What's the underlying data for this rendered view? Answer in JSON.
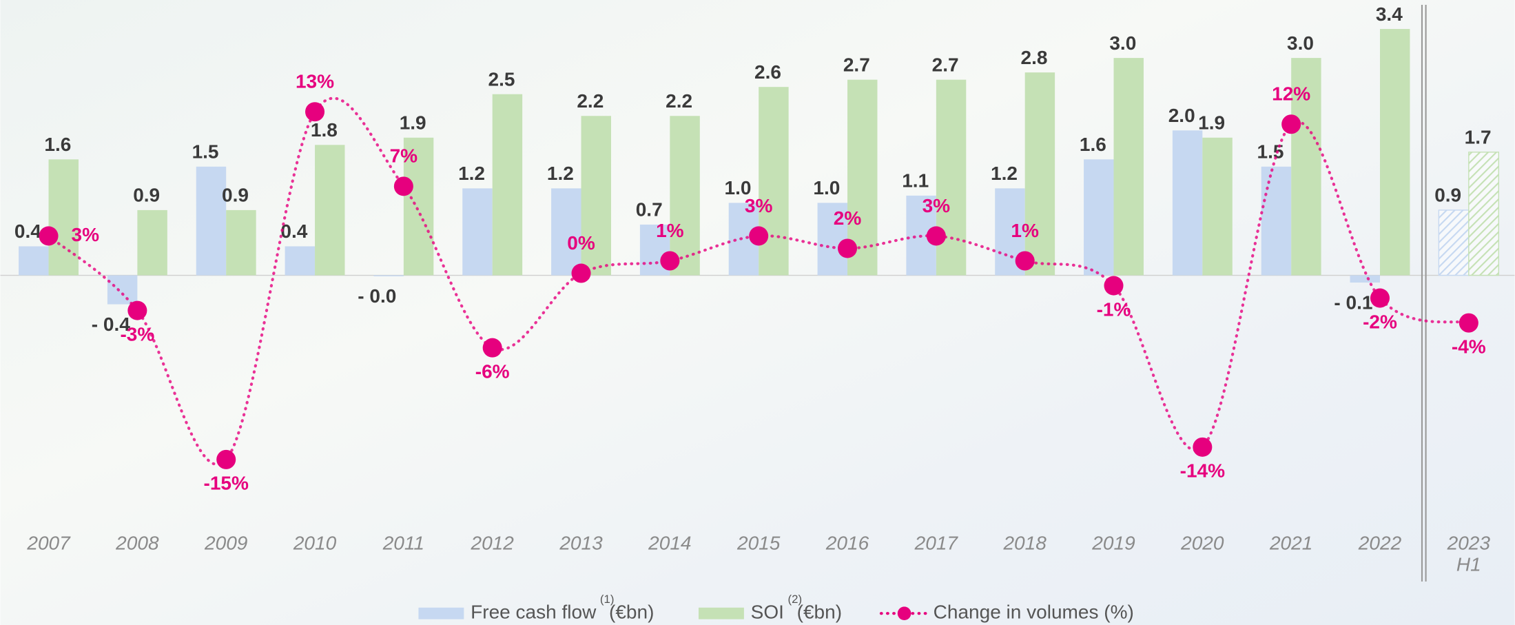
{
  "chart_data": {
    "type": "bar_line",
    "categories": [
      "2007",
      "2008",
      "2009",
      "2010",
      "2011",
      "2012",
      "2013",
      "2014",
      "2015",
      "2016",
      "2017",
      "2018",
      "2019",
      "2020",
      "2021",
      "2022",
      "2023\nH1"
    ],
    "hatched_categories": [
      "2023\nH1"
    ],
    "ylim": [
      -3.4,
      3.8
    ],
    "y2lim": [
      -20,
      22
    ],
    "series": [
      {
        "name": "Free cash flow",
        "footnote": "(1)",
        "unit": "(€bn)",
        "color": "#c6d8f1",
        "type": "bar",
        "values": [
          0.4,
          -0.4,
          1.5,
          0.4,
          -0.01,
          1.2,
          1.2,
          0.7,
          1.0,
          1.0,
          1.1,
          1.2,
          1.6,
          2.0,
          1.5,
          -0.1,
          0.9
        ],
        "value_labels": [
          "0.4",
          "- 0.4",
          "1.5",
          "0.4",
          "- 0.0",
          "1.2",
          "1.2",
          "0.7",
          "1.0",
          "1.0",
          "1.1",
          "1.2",
          "1.6",
          "2.0",
          "1.5",
          "- 0.1",
          "0.9"
        ]
      },
      {
        "name": "SOI",
        "footnote": "(2)",
        "unit": "(€bn)",
        "color": "#c5e1b5",
        "type": "bar",
        "values": [
          1.6,
          0.9,
          0.9,
          1.8,
          1.9,
          2.5,
          2.2,
          2.2,
          2.6,
          2.7,
          2.7,
          2.8,
          3.0,
          1.9,
          3.0,
          3.4,
          1.7
        ],
        "value_labels": [
          "1.6",
          "0.9",
          "0.9",
          "1.8",
          "1.9",
          "2.5",
          "2.2",
          "2.2",
          "2.6",
          "2.7",
          "2.7",
          "2.8",
          "3.0",
          "1.9",
          "3.0",
          "3.4",
          "1.7"
        ]
      },
      {
        "name": "Change in volumes (%)",
        "color": "#e6007e",
        "type": "line",
        "axis": "y2",
        "values": [
          3,
          -3,
          -15,
          13,
          7,
          -6,
          0,
          1,
          3,
          2,
          3,
          1,
          -1,
          -14,
          12,
          -2,
          -4
        ],
        "value_labels": [
          "3%",
          "-3%",
          "-15%",
          "13%",
          "7%",
          "-6%",
          "0%",
          "1%",
          "3%",
          "2%",
          "3%",
          "1%",
          "-1%",
          "-14%",
          "12%",
          "-2%",
          "-4%"
        ]
      }
    ],
    "legend": "bottom"
  }
}
